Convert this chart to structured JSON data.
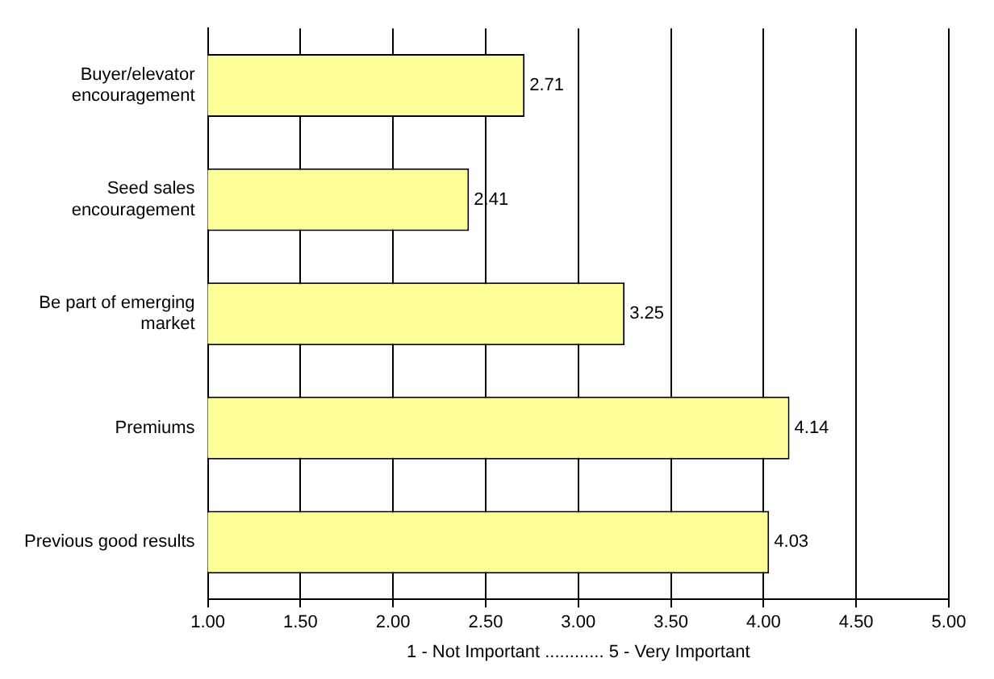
{
  "chart_data": {
    "type": "bar",
    "orientation": "horizontal",
    "xlabel": "1 - Not Important ............ 5 - Very Important",
    "categories": [
      "Buyer/elevator encouragement",
      "Seed sales encouragement",
      "Be part of emerging market",
      "Premiums",
      "Previous good results"
    ],
    "values": [
      2.71,
      2.41,
      3.25,
      4.14,
      4.03
    ],
    "color": "#ffff99",
    "xlim": [
      1,
      5
    ],
    "xticks": [
      {
        "value": 1,
        "label": "1.00"
      },
      {
        "value": 1.5,
        "label": "1.50"
      },
      {
        "value": 2,
        "label": "2.00"
      },
      {
        "value": 2.5,
        "label": "2.50"
      },
      {
        "value": 3,
        "label": "3.00"
      },
      {
        "value": 3.5,
        "label": "3.50"
      },
      {
        "value": 4,
        "label": "4.00"
      },
      {
        "value": 4.5,
        "label": "4.50"
      },
      {
        "value": 5,
        "label": "5.00"
      }
    ],
    "grid": "x",
    "data_labels": true,
    "legend": false
  }
}
